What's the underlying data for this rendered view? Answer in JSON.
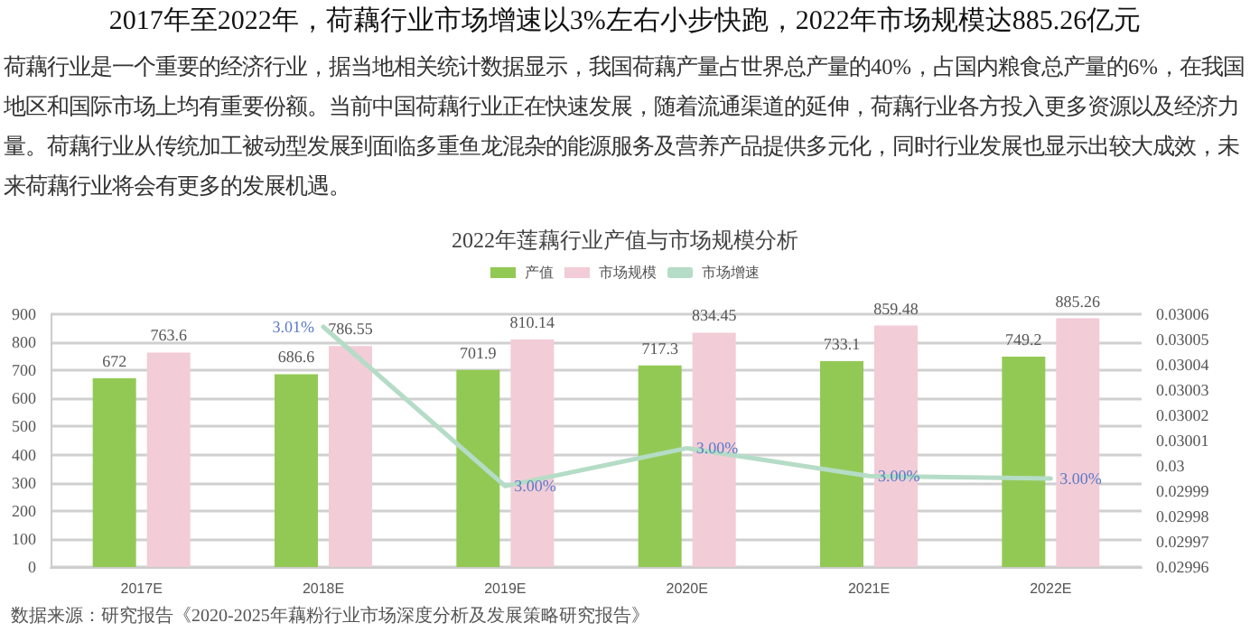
{
  "chart_data": {
    "type": "bar",
    "title": "2022年莲藕行业产值与市场规模分析",
    "annotations": [
      "2017年至2022年，荷藕行业市场增速以3%左右小步快跑，2022年市场规模达885.26亿元",
      "荷藕行业是一个重要的经济行业，据当地相关统计数据显示，我国荷藕产量占世界总产量的40%，占国内粮食总产量的6%，在我国地区和国际市场上均有重要份额。当前中国荷藕行业正在快速发展，随着流通渠道的延伸，荷藕行业各方投入更多资源以及经济力量。荷藕行业从传统加工被动型发展到面临多重鱼龙混杂的能源服务及营养产品提供多元化，同时行业发展也显示出较大成效，未来荷藕行业将会有更多的发展机遇。",
      "数据来源：研究报告《2020-2025年藕粉行业市场深度分析及发展策略研究报告》"
    ],
    "categories": [
      "2017E",
      "2018E",
      "2019E",
      "2020E",
      "2021E",
      "2022E"
    ],
    "series": [
      {
        "name": "产值",
        "color": "#92c955",
        "values": [
          672,
          686.6,
          701.9,
          717.3,
          733.1,
          749.2
        ]
      },
      {
        "name": "市场规模",
        "color": "#f2ccd7",
        "values": [
          763.6,
          786.55,
          810.14,
          834.45,
          859.48,
          885.26
        ]
      },
      {
        "name": "市场增速",
        "type": "line",
        "axis": "y2",
        "color": "#b5dcc6",
        "values": [
          null,
          0.030055,
          0.029992,
          0.030007,
          0.029996,
          0.029995
        ],
        "value_labels": [
          null,
          "3.01%",
          "3.00%",
          "3.00%",
          "3.00%",
          "3.00%"
        ]
      }
    ],
    "data_labels": true,
    "ylim": [
      0,
      900
    ],
    "yticks": [
      0,
      100,
      200,
      300,
      400,
      500,
      600,
      700,
      800,
      900
    ],
    "y2lim": [
      0.02996,
      0.03006
    ],
    "y2ticks": [
      0.02996,
      0.02997,
      0.02998,
      0.02999,
      0.03,
      0.03001,
      0.03002,
      0.03003,
      0.03004,
      0.03005,
      0.03006
    ],
    "grid": "y",
    "legend": "top",
    "marker": "none",
    "line_style": "solid"
  }
}
